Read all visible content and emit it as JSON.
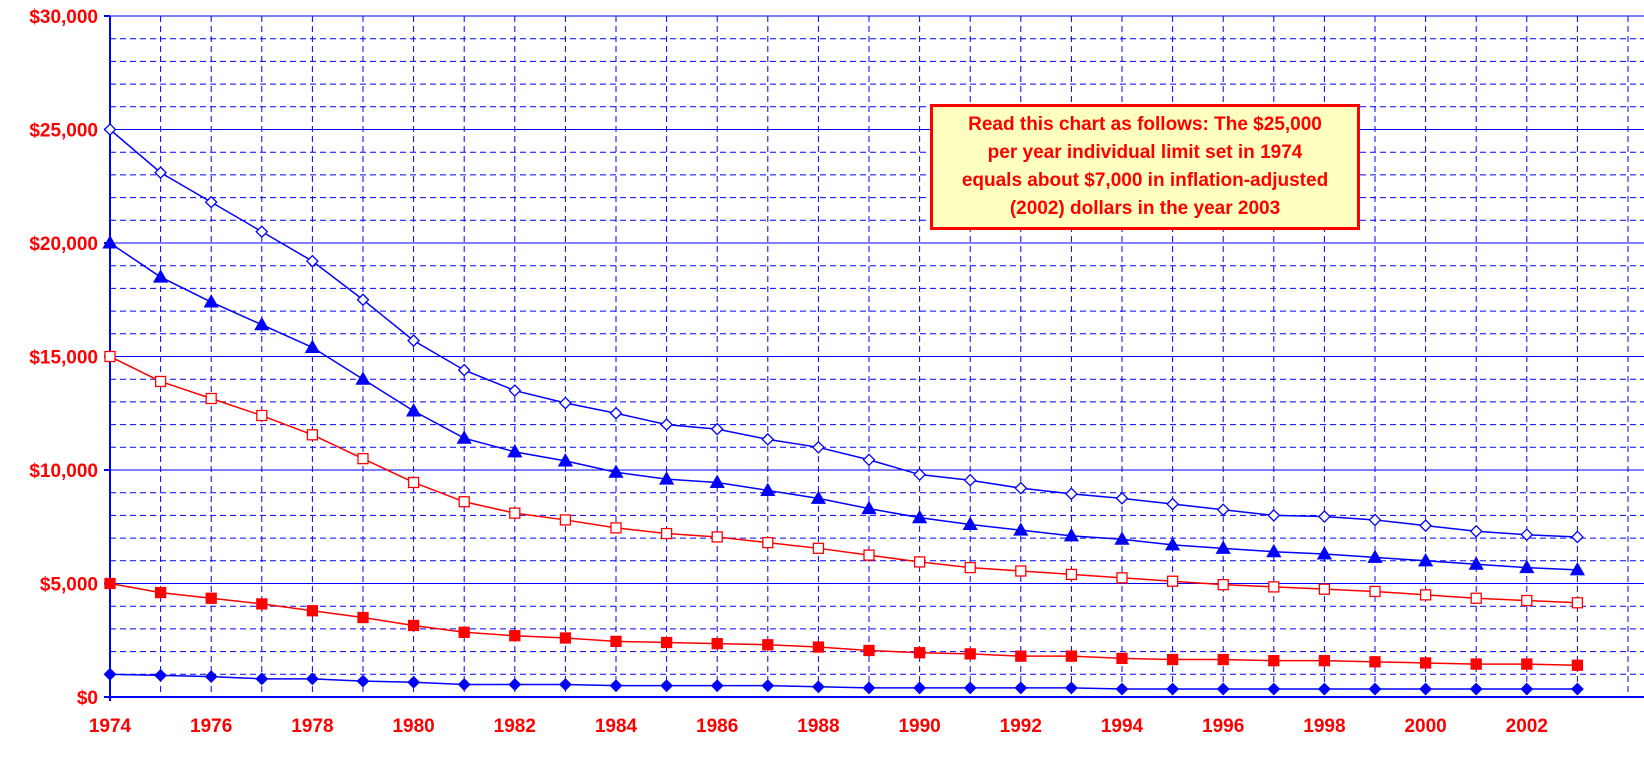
{
  "chart_data": {
    "type": "line",
    "title": "",
    "xlabel": "",
    "ylabel": "",
    "ylim": [
      0,
      30000
    ],
    "xlim": [
      1974,
      2003
    ],
    "y_ticks": [
      0,
      5000,
      10000,
      15000,
      20000,
      25000,
      30000
    ],
    "y_tick_labels": [
      "$0",
      "$5,000",
      "$10,000",
      "$15,000",
      "$20,000",
      "$25,000",
      "$30,000"
    ],
    "x_tick_labels": [
      "1974",
      "1976",
      "1978",
      "1980",
      "1982",
      "1984",
      "1986",
      "1988",
      "1990",
      "1992",
      "1994",
      "1996",
      "1998",
      "2000",
      "2002"
    ],
    "grid": true,
    "x": [
      1974,
      1975,
      1976,
      1977,
      1978,
      1979,
      1980,
      1981,
      1982,
      1983,
      1984,
      1985,
      1986,
      1987,
      1988,
      1989,
      1990,
      1991,
      1992,
      1993,
      1994,
      1995,
      1996,
      1997,
      1998,
      1999,
      2000,
      2001,
      2002,
      2003
    ],
    "series": [
      {
        "color": "#0000ff",
        "marker": "diamond-open",
        "values": [
          25000,
          23100,
          21800,
          20500,
          19200,
          17500,
          15700,
          14400,
          13500,
          12950,
          12500,
          12000,
          11800,
          11350,
          11000,
          10450,
          9800,
          9550,
          9200,
          8950,
          8750,
          8500,
          8250,
          8000,
          7950,
          7800,
          7550,
          7300,
          7150,
          7050
        ]
      },
      {
        "color": "#0000ff",
        "marker": "triangle-filled",
        "values": [
          20000,
          18500,
          17400,
          16400,
          15400,
          14000,
          12600,
          11400,
          10800,
          10400,
          9900,
          9600,
          9450,
          9100,
          8750,
          8300,
          7900,
          7600,
          7350,
          7100,
          6950,
          6700,
          6550,
          6400,
          6300,
          6150,
          6000,
          5850,
          5700,
          5600
        ]
      },
      {
        "color": "#ff0000",
        "marker": "square-open",
        "values": [
          15000,
          13900,
          13150,
          12400,
          11550,
          10500,
          9450,
          8600,
          8100,
          7800,
          7450,
          7200,
          7050,
          6800,
          6550,
          6250,
          5950,
          5700,
          5550,
          5400,
          5250,
          5100,
          4950,
          4850,
          4750,
          4650,
          4500,
          4350,
          4250,
          4150
        ]
      },
      {
        "color": "#ff0000",
        "marker": "square-filled",
        "values": [
          5000,
          4600,
          4350,
          4100,
          3800,
          3500,
          3150,
          2850,
          2700,
          2600,
          2450,
          2400,
          2350,
          2300,
          2200,
          2050,
          1950,
          1900,
          1800,
          1800,
          1700,
          1650,
          1650,
          1600,
          1600,
          1550,
          1500,
          1450,
          1450,
          1400
        ]
      },
      {
        "color": "#0000ff",
        "marker": "diamond-filled",
        "values": [
          1000,
          950,
          900,
          800,
          800,
          700,
          650,
          550,
          550,
          550,
          500,
          500,
          500,
          500,
          450,
          400,
          400,
          400,
          400,
          400,
          350,
          350,
          350,
          350,
          350,
          350,
          350,
          350,
          350,
          350
        ]
      }
    ],
    "annotations": [
      {
        "text": "Read this chart as follows:  The $25,000\nper year individual limit set in 1974\nequals about $7,000 in inflation-adjusted\n(2002) dollars in the year 2003"
      }
    ]
  }
}
